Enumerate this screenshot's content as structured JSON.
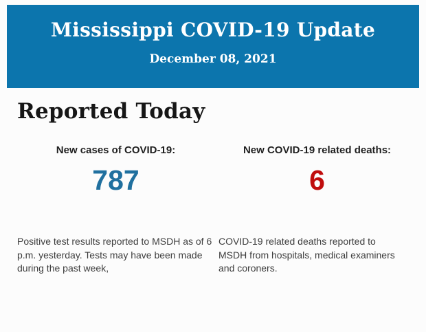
{
  "page": {
    "background_color": "#fcfcfc"
  },
  "header": {
    "title": "Mississippi COVID-19 Update",
    "date": "December 08, 2021",
    "background_color": "#0c75ad",
    "text_color": "#ffffff"
  },
  "report": {
    "heading": "Reported Today",
    "stats": [
      {
        "label": "New cases of COVID-19:",
        "value": "787",
        "value_color": "#20709f",
        "description": "Positive test results reported to MSDH as of 6 p.m. yesterday. Tests may have been made during the past week,"
      },
      {
        "label": "New COVID-19 related deaths:",
        "value": "6",
        "value_color": "#c00d0d",
        "description": "COVID-19 related deaths reported to MSDH from hospitals, medical examiners and coroners."
      }
    ]
  }
}
